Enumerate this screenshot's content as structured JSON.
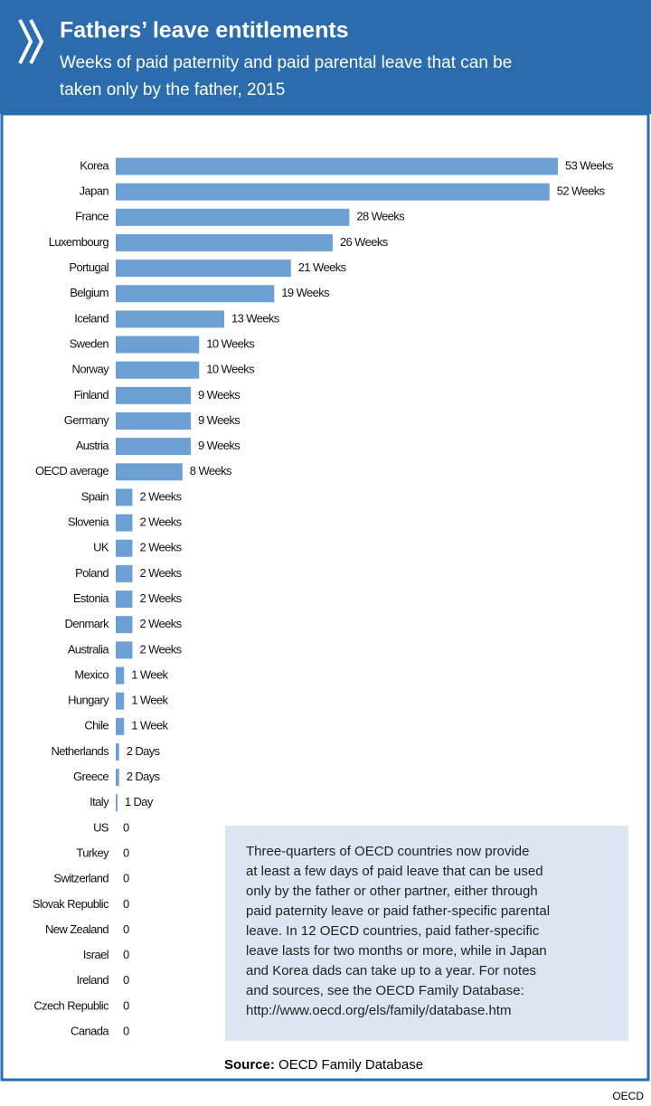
{
  "chart_data": {
    "type": "hbar",
    "title": "Fathers’ leave entitlements",
    "subtitle": [
      "Weeks of paid paternity and paid parental leave that can be",
      "taken only by the father, 2015"
    ],
    "categories": [
      "Korea",
      "Japan",
      "France",
      "Luxembourg",
      "Portugal",
      "Belgium",
      "Iceland",
      "Sweden",
      "Norway",
      "Finland",
      "Germany",
      "Austria",
      "OECD average",
      "Spain",
      "Slovenia",
      "UK",
      "Poland",
      "Estonia",
      "Denmark",
      "Australia",
      "Mexico",
      "Hungary",
      "Chile",
      "Netherlands",
      "Greece",
      "Italy",
      "US",
      "Turkey",
      "Switzerland",
      "Slovak Republic",
      "New Zealand",
      "Israel",
      "Ireland",
      "Czech Republic",
      "Canada"
    ],
    "values": [
      53,
      52,
      28,
      26,
      21,
      19,
      13,
      10,
      10,
      9,
      9,
      9,
      8,
      2,
      2,
      2,
      2,
      2,
      2,
      2,
      1,
      1,
      1,
      0.4,
      0.4,
      0.2,
      0,
      0,
      0,
      0,
      0,
      0,
      0,
      0,
      0
    ],
    "value_labels": [
      "53 Weeks",
      "52 Weeks",
      "28 Weeks",
      "26 Weeks",
      "21 Weeks",
      "19 Weeks",
      "13 Weeks",
      "10 Weeks",
      "10 Weeks",
      "9 Weeks",
      "9 Weeks",
      "9 Weeks",
      "8 Weeks",
      "2 Weeks",
      "2 Weeks",
      "2 Weeks",
      "2 Weeks",
      "2 Weeks",
      "2 Weeks",
      "2 Weeks",
      "1 Week",
      "1 Week",
      "1 Week",
      "2 Days",
      "2 Days",
      "1 Day",
      "0",
      "0",
      "0",
      "0",
      "0",
      "0",
      "0",
      "0",
      "0"
    ],
    "color": "#6c9fd3",
    "xlim": [
      0,
      53
    ],
    "note": [
      "Three-quarters of OECD countries now provide",
      "at least a few days of paid leave that can be used",
      "only by the father or other partner, either through",
      "paid paternity leave or paid father-specific parental",
      "leave. In 12 OECD countries, paid father-specific",
      "leave lasts for two months or more, while in Japan",
      "and Korea dads can take up to a year. For notes",
      "and sources, see the OECD Family Database:",
      "http://www.oecd.org/els/family/database.htm"
    ],
    "source": {
      "label": "Source:",
      "text": "OECD Family Database"
    },
    "credit": "OECD"
  }
}
